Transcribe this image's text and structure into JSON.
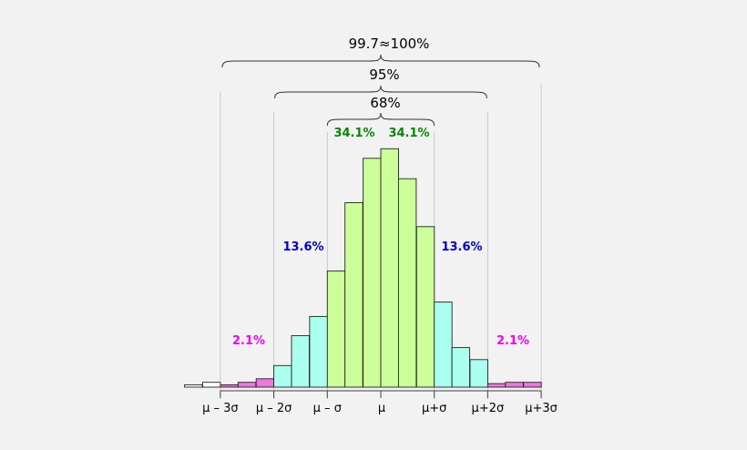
{
  "chart_data": {
    "type": "bar",
    "title": "",
    "xlabel": "",
    "ylabel": "",
    "ylim": [
      0,
      1.0
    ],
    "grid": false,
    "x_unit_label": "σ",
    "bin_width": 0.333,
    "categories": [
      "-3.67",
      "-3.33",
      "-3.00",
      "-2.67",
      "-2.33",
      "-2.00",
      "-1.67",
      "-1.33",
      "-1.00",
      "-0.67",
      "-0.33",
      "0.00",
      "0.33",
      "0.67",
      "1.00",
      "1.33",
      "1.67",
      "2.00",
      "2.33",
      "2.67",
      "3.00"
    ],
    "values": [
      0.01,
      0.02,
      0.01,
      0.02,
      0.035,
      0.09,
      0.215,
      0.295,
      0.485,
      0.77,
      0.955,
      0.995,
      0.87,
      0.67,
      0.355,
      0.165,
      0.115,
      0.015,
      0.02,
      0.02,
      0.0
    ],
    "bar_groups": [
      "outer",
      "outer",
      "3sigma",
      "3sigma",
      "3sigma",
      "2sigma",
      "2sigma",
      "2sigma",
      "1sigma",
      "1sigma",
      "1sigma",
      "1sigma",
      "1sigma",
      "1sigma",
      "2sigma",
      "2sigma",
      "2sigma",
      "3sigma",
      "3sigma",
      "3sigma",
      "outer"
    ],
    "colors": {
      "1sigma": "#ccff99",
      "2sigma": "#aaffee",
      "3sigma": "#ee77dd",
      "outer": "#ffffff",
      "bar_stroke": "#222222",
      "band_1sigma": "#008800",
      "band_2sigma": "#0000cc",
      "band_3sigma": "#ee00ee"
    },
    "tick_labels": [
      "μ – 3σ",
      "μ – 2σ",
      "μ – σ",
      "μ",
      "μ+σ",
      "μ+2σ",
      "μ+3σ"
    ],
    "tick_values": [
      -3,
      -2,
      -1,
      0,
      1,
      2,
      3
    ],
    "annotations": {
      "pct_1sigma_left": "34.1%",
      "pct_1sigma_right": "34.1%",
      "pct_2sigma_left": "13.6%",
      "pct_2sigma_right": "13.6%",
      "pct_3sigma_left": "2.1%",
      "pct_3sigma_right": "2.1%",
      "brace_68": "68%",
      "brace_95": "95%",
      "brace_997": "99.7≈100%"
    }
  }
}
